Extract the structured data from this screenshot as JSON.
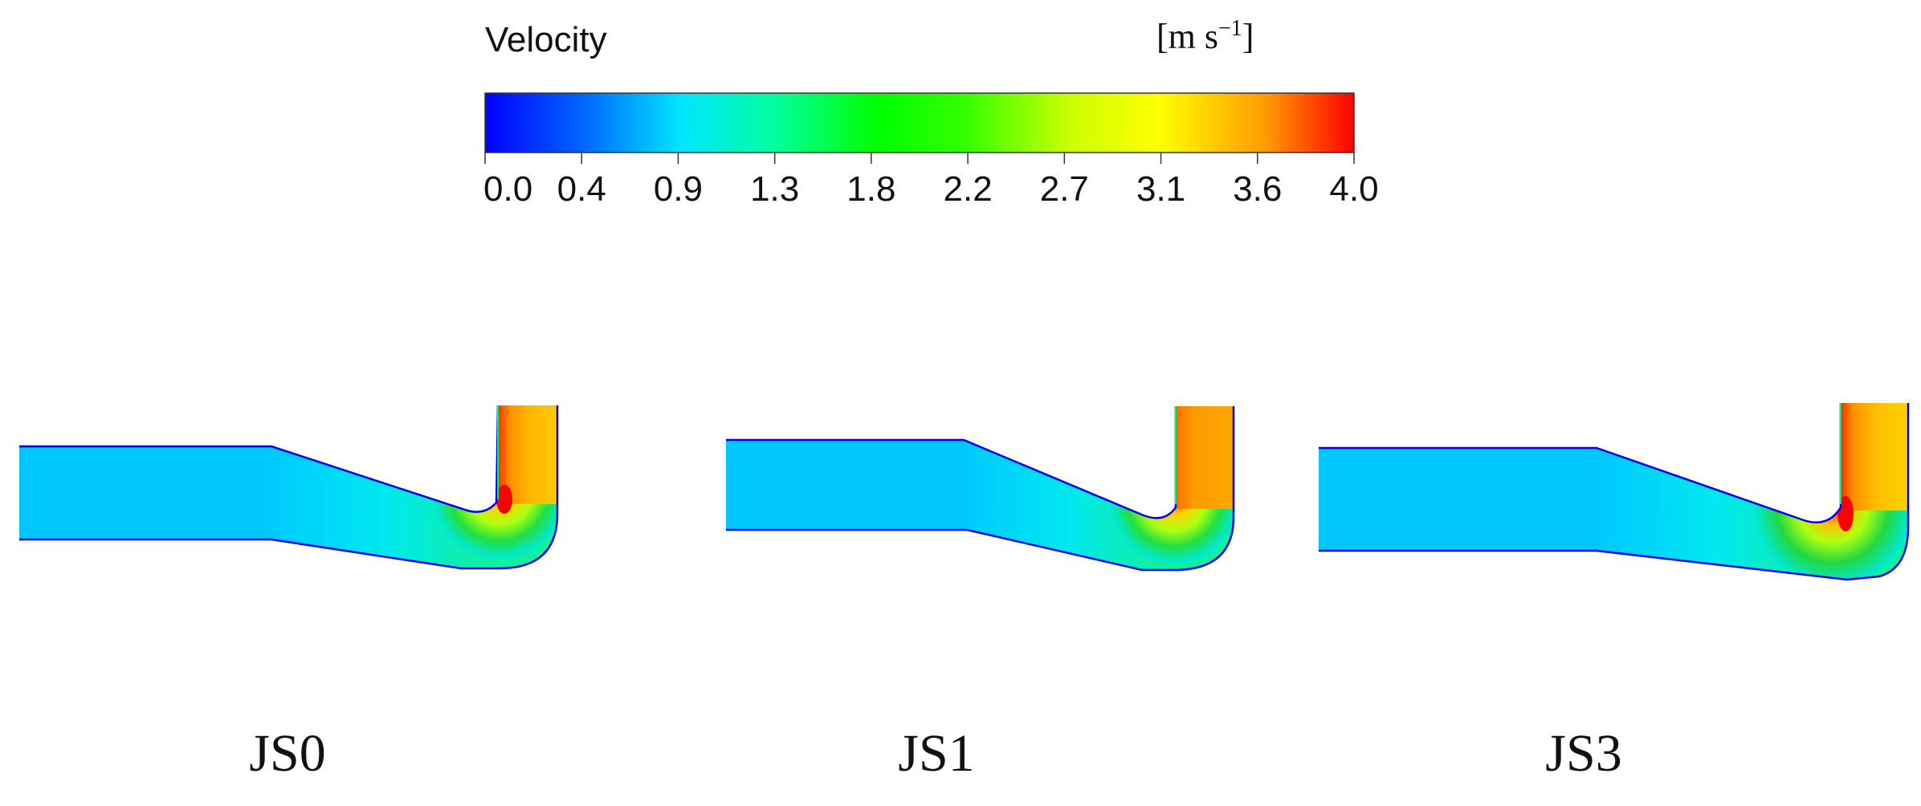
{
  "legend": {
    "title": "Velocity",
    "unit_base": "[m s",
    "unit_exp": "−1",
    "unit_close": "]",
    "min": 0.0,
    "max": 4.0,
    "ticks": [
      "0.0",
      "0.4",
      "0.9",
      "1.3",
      "1.8",
      "2.2",
      "2.7",
      "3.1",
      "3.6",
      "4.0"
    ],
    "colormap": [
      {
        "value": 0.0,
        "color": "#0000ff"
      },
      {
        "value": 0.45,
        "color": "#0066ff"
      },
      {
        "value": 0.9,
        "color": "#00e5ff"
      },
      {
        "value": 1.35,
        "color": "#00ff99"
      },
      {
        "value": 1.8,
        "color": "#00ff00"
      },
      {
        "value": 2.2,
        "color": "#33ff00"
      },
      {
        "value": 2.7,
        "color": "#ccff00"
      },
      {
        "value": 3.1,
        "color": "#ffff00"
      },
      {
        "value": 3.6,
        "color": "#ff9900"
      },
      {
        "value": 4.0,
        "color": "#ff0000"
      }
    ]
  },
  "panels": [
    {
      "label": "JS0"
    },
    {
      "label": "JS1"
    },
    {
      "label": "JS3"
    }
  ],
  "colors": {
    "inlet": "#00c8ff",
    "mid": "#00f0e0",
    "green": "#33ee44",
    "outlet": "#ffc000",
    "outlet_alt": "#ffa000",
    "wall": "#0000ff",
    "hot": "#ff0000"
  }
}
